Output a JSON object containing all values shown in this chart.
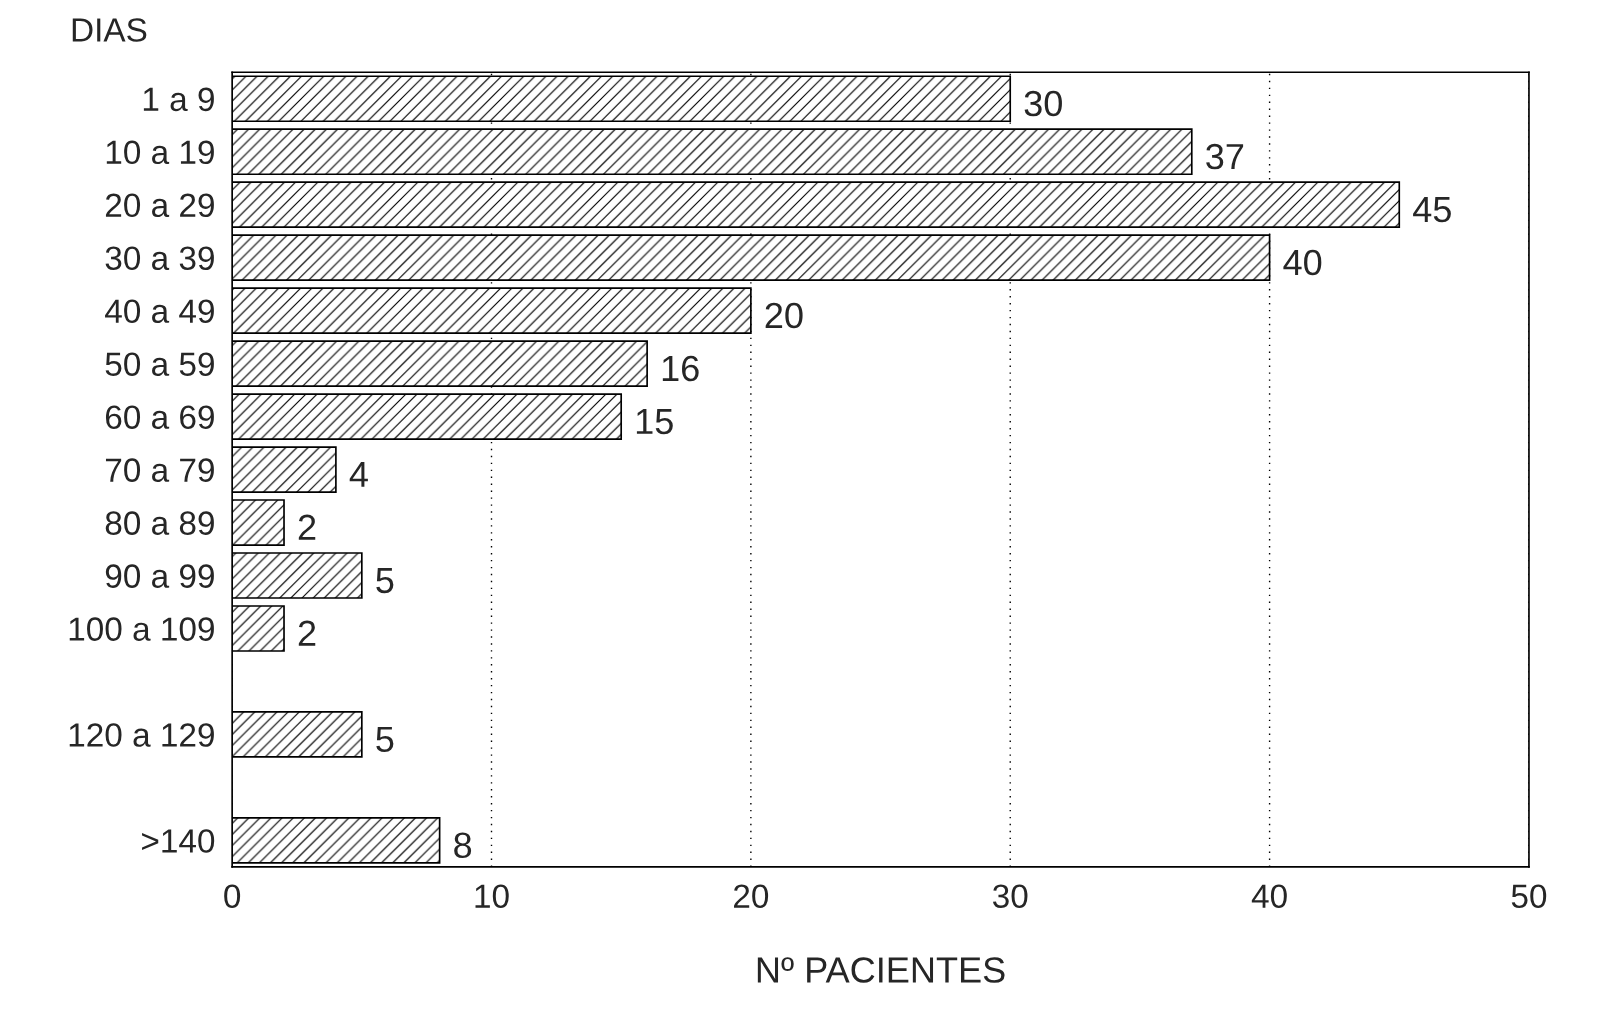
{
  "chart_data": {
    "type": "bar",
    "orientation": "horizontal",
    "ylabel": "DIAS",
    "xlabel": "Nº PACIENTES",
    "categories": [
      "1 a 9",
      "10 a 19",
      "20 a 29",
      "30 a 39",
      "40 a 49",
      "50 a 59",
      "60 a 69",
      "70 a 79",
      "80 a 89",
      "90 a 99",
      "100 a 109",
      null,
      "120 a 129",
      null,
      ">140"
    ],
    "values": [
      30,
      37,
      45,
      40,
      20,
      16,
      15,
      4,
      2,
      5,
      2,
      null,
      5,
      null,
      8
    ],
    "color": "#000000",
    "xlim": [
      0,
      50
    ],
    "xticks": [
      0,
      10,
      20,
      30,
      40,
      50
    ],
    "grid": "x",
    "data_labels": true
  }
}
